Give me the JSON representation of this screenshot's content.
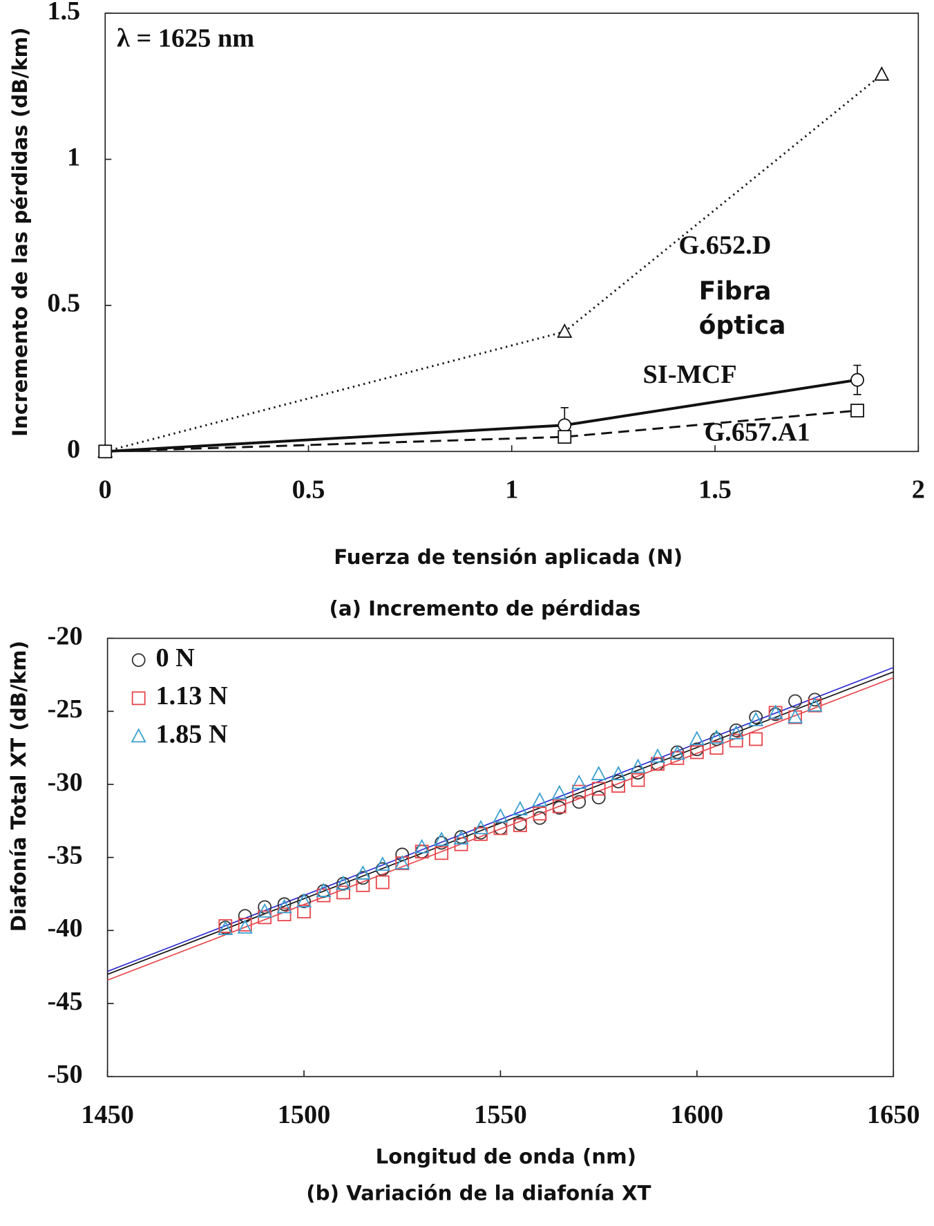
{
  "chart_data": [
    {
      "type": "line",
      "title": "(a) Incremento de pérdidas",
      "xlabel": "Fuerza de tensión aplicada (N)",
      "ylabel": "Incremento de las pérdidas (dB/km)",
      "annotations": [
        "λ = 1625 nm",
        "Fibra",
        "óptica"
      ],
      "xlim": [
        0,
        2
      ],
      "ylim": [
        0,
        1.5
      ],
      "xticks": [
        0,
        0.5,
        1,
        1.5,
        2
      ],
      "yticks": [
        0,
        0.5,
        1,
        1.5
      ],
      "series": [
        {
          "name": "G.652.D",
          "color": "#111111",
          "dash": "dotted",
          "marker": "triangle",
          "x": [
            0,
            1.13,
            1.91
          ],
          "values": [
            0,
            0.41,
            1.29
          ]
        },
        {
          "name": "SI-MCF",
          "color": "#111111",
          "dash": "solid",
          "marker": "circle",
          "x": [
            0,
            1.13,
            1.85
          ],
          "values": [
            0,
            0.09,
            0.245
          ],
          "errors": [
            null,
            0.06,
            0.05
          ]
        },
        {
          "name": "G.657.A1",
          "color": "#111111",
          "dash": "dashed",
          "marker": "square",
          "x": [
            0,
            1.13,
            1.85
          ],
          "values": [
            0,
            0.05,
            0.14
          ]
        }
      ]
    },
    {
      "type": "scatter",
      "title": "(b) Variación de la diafonía XT",
      "xlabel": "Longitud de onda (nm)",
      "ylabel": "Diafonía Total XT (dB/km)",
      "xlim": [
        1450,
        1650
      ],
      "ylim": [
        -50,
        -20
      ],
      "xticks": [
        1450,
        1500,
        1550,
        1600,
        1650
      ],
      "yticks": [
        -50,
        -45,
        -40,
        -35,
        -30,
        -25,
        -20
      ],
      "legend": "upper left",
      "x": [
        1480,
        1485,
        1490,
        1495,
        1500,
        1505,
        1510,
        1515,
        1520,
        1525,
        1530,
        1535,
        1540,
        1545,
        1550,
        1555,
        1560,
        1565,
        1570,
        1575,
        1580,
        1585,
        1590,
        1595,
        1600,
        1605,
        1610,
        1615,
        1620,
        1625,
        1630
      ],
      "series": [
        {
          "name": "0 N",
          "color": "#333333",
          "marker": "circle",
          "values": [
            -39.8,
            -39.0,
            -38.4,
            -38.2,
            -38.0,
            -37.3,
            -36.8,
            -36.4,
            -35.8,
            -34.8,
            -34.6,
            -34.0,
            -33.6,
            -33.3,
            -33.0,
            -32.7,
            -32.3,
            -31.6,
            -31.2,
            -30.9,
            -29.8,
            -29.2,
            -28.6,
            -27.8,
            -27.6,
            -26.9,
            -26.3,
            -25.4,
            -25.2,
            -24.3,
            -24.2
          ]
        },
        {
          "name": "1.13 N",
          "color": "#e8454a",
          "marker": "square",
          "values": [
            -39.7,
            -39.6,
            -39.1,
            -38.9,
            -38.7,
            -37.6,
            -37.4,
            -36.9,
            -36.7,
            -35.4,
            -34.6,
            -34.7,
            -34.1,
            -33.4,
            -33.0,
            -32.8,
            -32.0,
            -31.5,
            -30.5,
            -30.3,
            -30.1,
            -29.7,
            -28.6,
            -28.2,
            -27.8,
            -27.5,
            -27.0,
            -26.9,
            -25.1,
            -25.4,
            -24.6
          ]
        },
        {
          "name": "1.85 N",
          "color": "#3a9fd0",
          "marker": "triangle",
          "values": [
            -39.9,
            -39.8,
            -38.7,
            -38.4,
            -38.0,
            -37.3,
            -36.8,
            -36.1,
            -35.5,
            -35.4,
            -34.3,
            -33.8,
            -33.7,
            -33.0,
            -32.2,
            -31.7,
            -31.1,
            -30.6,
            -29.9,
            -29.3,
            -29.3,
            -28.8,
            -28.1,
            -27.9,
            -26.9,
            -26.8,
            -26.5,
            -25.6,
            -25.1,
            -25.4,
            -24.6
          ]
        }
      ],
      "fits": [
        {
          "color": "#111111",
          "x": [
            1450,
            1650
          ],
          "values": [
            -43.0,
            -22.3
          ]
        },
        {
          "color": "#e8454a",
          "x": [
            1450,
            1650
          ],
          "values": [
            -43.4,
            -22.7
          ]
        },
        {
          "color": "#2a2ad0",
          "x": [
            1450,
            1650
          ],
          "values": [
            -42.8,
            -22.0
          ]
        }
      ]
    }
  ]
}
